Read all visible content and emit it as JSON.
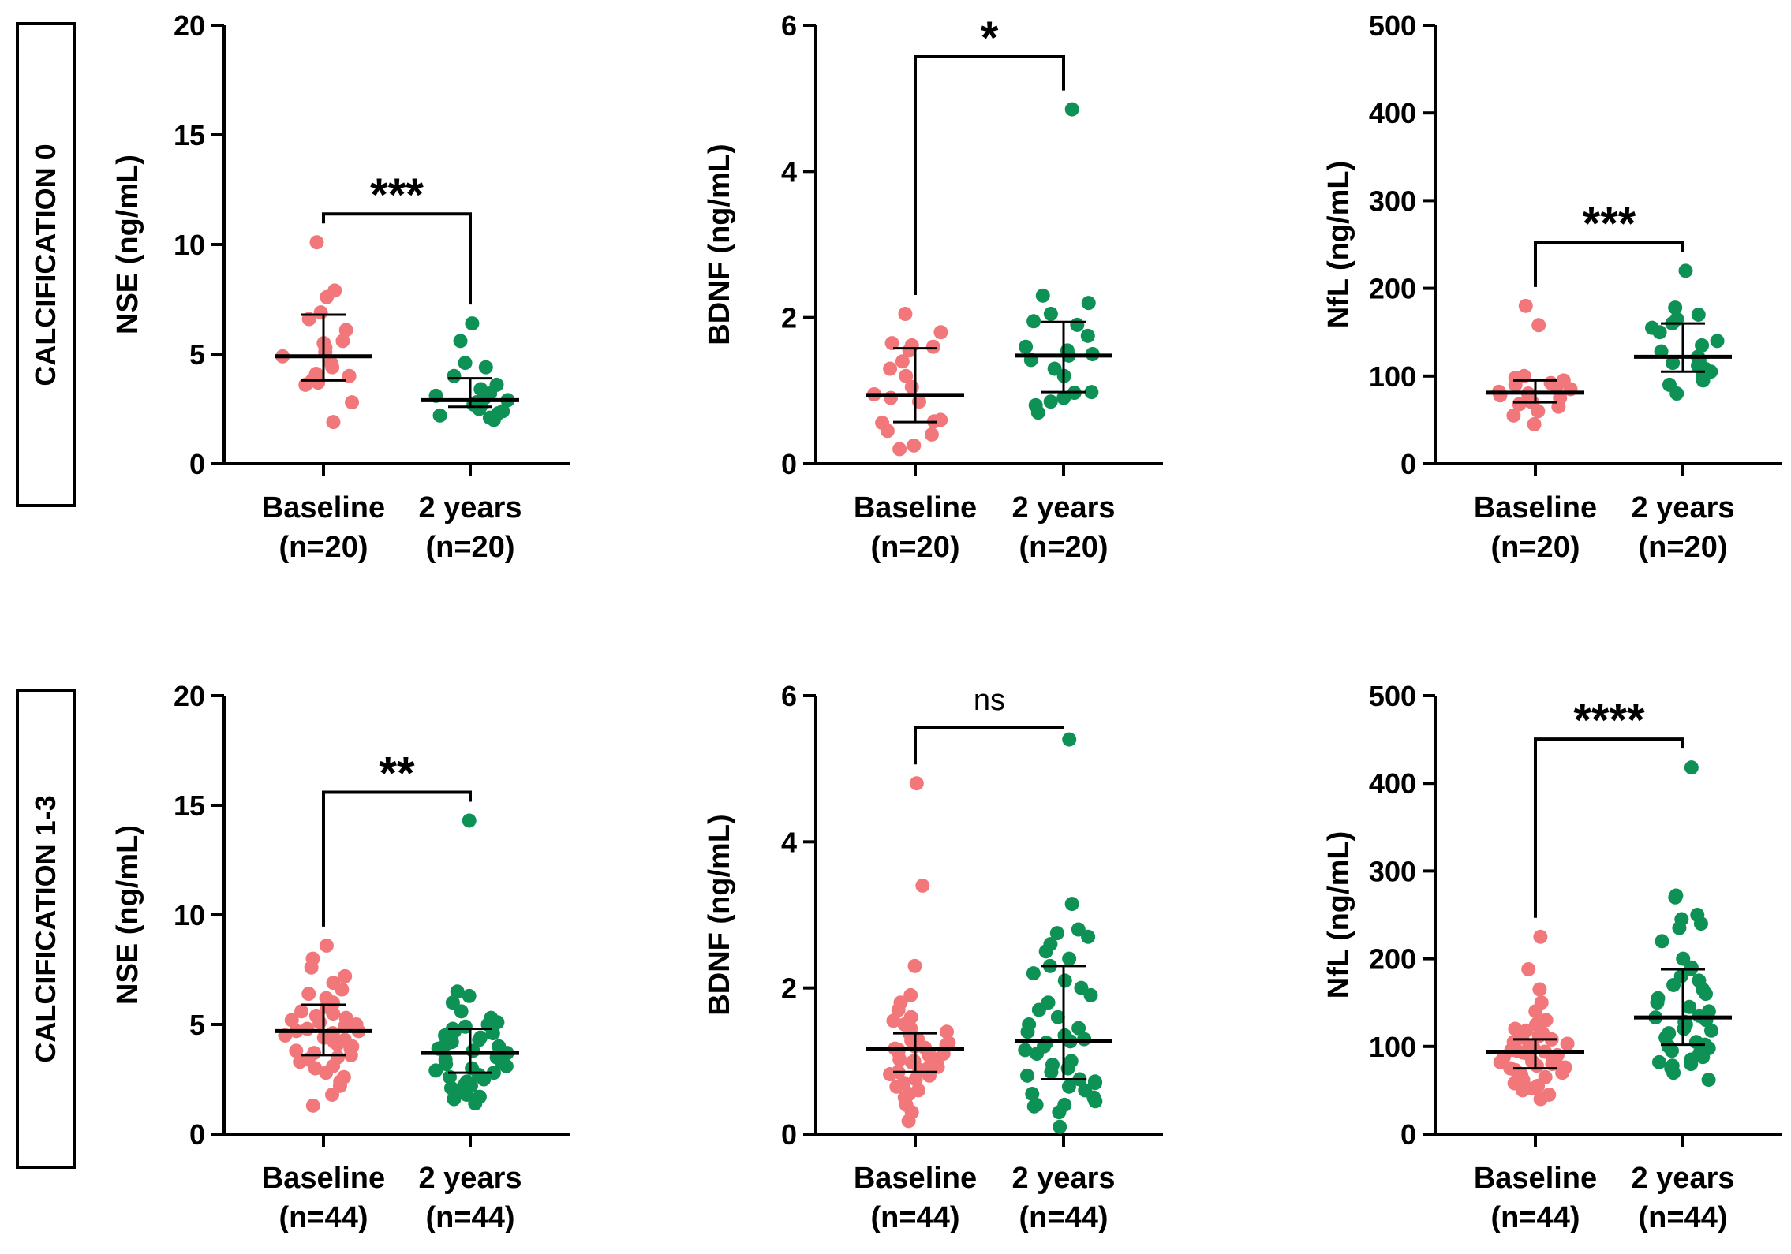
{
  "figure": {
    "rows": [
      {
        "label": "CALCIFICATION 0"
      },
      {
        "label": "CALCIFICATION 1-3"
      }
    ]
  },
  "colors": {
    "baseline": "#F2777A",
    "followup": "#0E9155",
    "axis": "#000000"
  },
  "chart_data": [
    {
      "type": "scatter",
      "row": "CALCIFICATION 0",
      "ylabel": "NSE (ng/mL)",
      "ylim": [
        0,
        20
      ],
      "yticks": [
        0,
        5,
        10,
        15,
        20
      ],
      "categories": [
        "Baseline",
        "2 years"
      ],
      "category_n": [
        "(n=20)",
        "(n=20)"
      ],
      "significance": "***",
      "series": [
        {
          "name": "Baseline",
          "median": 4.9,
          "q1": 3.8,
          "q3": 6.8,
          "values": [
            10.1,
            7.9,
            7.6,
            6.9,
            6.6,
            6.1,
            5.6,
            5.5,
            5.3,
            5.1,
            4.9,
            4.6,
            4.4,
            4.1,
            4.0,
            3.8,
            3.7,
            3.6,
            2.8,
            1.9
          ]
        },
        {
          "name": "2 years",
          "median": 2.9,
          "q1": 2.6,
          "q3": 3.9,
          "values": [
            6.4,
            5.6,
            4.6,
            4.4,
            4.0,
            3.6,
            3.4,
            3.2,
            3.1,
            3.0,
            2.9,
            2.8,
            2.7,
            2.6,
            2.5,
            2.4,
            2.3,
            2.2,
            2.1,
            2.0
          ]
        }
      ]
    },
    {
      "type": "scatter",
      "row": "CALCIFICATION 0",
      "ylabel": "BDNF (ng/mL)",
      "ylim": [
        0,
        6
      ],
      "yticks": [
        0,
        2,
        4,
        6
      ],
      "categories": [
        "Baseline",
        "2 years"
      ],
      "category_n": [
        "(n=20)",
        "(n=20)"
      ],
      "significance": "*",
      "series": [
        {
          "name": "Baseline",
          "median": 0.94,
          "q1": 0.57,
          "q3": 1.58,
          "values": [
            2.05,
            1.8,
            1.65,
            1.62,
            1.6,
            1.55,
            1.4,
            1.3,
            1.2,
            1.05,
            0.95,
            0.9,
            0.85,
            0.6,
            0.58,
            0.56,
            0.45,
            0.4,
            0.25,
            0.2
          ]
        },
        {
          "name": "2 years",
          "median": 1.48,
          "q1": 0.98,
          "q3": 1.94,
          "values": [
            4.85,
            2.3,
            2.2,
            2.05,
            1.95,
            1.9,
            1.75,
            1.6,
            1.55,
            1.5,
            1.48,
            1.42,
            1.3,
            1.2,
            0.98,
            0.97,
            0.9,
            0.85,
            0.8,
            0.7
          ]
        }
      ]
    },
    {
      "type": "scatter",
      "row": "CALCIFICATION 0",
      "ylabel": "NfL (ng/mL)",
      "ylim": [
        0,
        500
      ],
      "yticks": [
        0,
        100,
        200,
        300,
        400,
        500
      ],
      "categories": [
        "Baseline",
        "2 years"
      ],
      "category_n": [
        "(n=20)",
        "(n=20)"
      ],
      "significance": "***",
      "series": [
        {
          "name": "Baseline",
          "median": 81,
          "q1": 70,
          "q3": 95,
          "values": [
            180,
            158,
            100,
            98,
            95,
            92,
            90,
            88,
            85,
            82,
            80,
            78,
            75,
            72,
            70,
            68,
            65,
            60,
            55,
            45
          ]
        },
        {
          "name": "2 years",
          "median": 122,
          "q1": 105,
          "q3": 160,
          "values": [
            220,
            178,
            170,
            165,
            160,
            155,
            150,
            140,
            135,
            128,
            122,
            118,
            115,
            112,
            108,
            105,
            100,
            95,
            90,
            80
          ]
        }
      ]
    },
    {
      "type": "scatter",
      "row": "CALCIFICATION 1-3",
      "ylabel": "NSE (ng/mL)",
      "ylim": [
        0,
        20
      ],
      "yticks": [
        0,
        5,
        10,
        15,
        20
      ],
      "categories": [
        "Baseline",
        "2 years"
      ],
      "category_n": [
        "(n=44)",
        "(n=44)"
      ],
      "significance": "**",
      "series": [
        {
          "name": "Baseline",
          "median": 4.7,
          "q1": 3.6,
          "q3": 5.9,
          "values": [
            8.6,
            8.0,
            7.6,
            7.2,
            6.9,
            6.6,
            6.4,
            6.2,
            6.0,
            5.9,
            5.8,
            5.6,
            5.5,
            5.4,
            5.3,
            5.2,
            5.1,
            5.0,
            4.9,
            4.8,
            4.7,
            4.7,
            4.6,
            4.5,
            4.4,
            4.3,
            4.2,
            4.1,
            4.0,
            3.9,
            3.8,
            3.7,
            3.6,
            3.5,
            3.4,
            3.3,
            3.1,
            3.0,
            2.8,
            2.6,
            2.4,
            2.2,
            1.8,
            1.3
          ]
        },
        {
          "name": "2 years",
          "median": 3.7,
          "q1": 2.8,
          "q3": 4.8,
          "values": [
            14.3,
            6.5,
            6.3,
            6.0,
            5.6,
            5.3,
            5.1,
            5.0,
            4.9,
            4.8,
            4.7,
            4.6,
            4.5,
            4.4,
            4.3,
            4.2,
            4.1,
            4.0,
            3.9,
            3.8,
            3.7,
            3.7,
            3.6,
            3.5,
            3.4,
            3.3,
            3.2,
            3.1,
            3.0,
            2.9,
            2.8,
            2.7,
            2.6,
            2.5,
            2.4,
            2.3,
            2.2,
            2.1,
            2.0,
            1.9,
            1.8,
            1.7,
            1.6,
            1.4
          ]
        }
      ]
    },
    {
      "type": "scatter",
      "row": "CALCIFICATION 1-3",
      "ylabel": "BDNF (ng/mL)",
      "ylim": [
        0,
        6
      ],
      "yticks": [
        0,
        2,
        4,
        6
      ],
      "categories": [
        "Baseline",
        "2 years"
      ],
      "category_n": [
        "(n=44)",
        "(n=44)"
      ],
      "significance": "ns",
      "series": [
        {
          "name": "Baseline",
          "median": 1.17,
          "q1": 0.85,
          "q3": 1.38,
          "values": [
            4.8,
            3.4,
            2.3,
            1.9,
            1.8,
            1.7,
            1.6,
            1.55,
            1.5,
            1.45,
            1.4,
            1.38,
            1.35,
            1.3,
            1.28,
            1.25,
            1.22,
            1.2,
            1.18,
            1.17,
            1.15,
            1.12,
            1.1,
            1.08,
            1.05,
            1.02,
            1.0,
            0.98,
            0.95,
            0.92,
            0.9,
            0.88,
            0.85,
            0.82,
            0.8,
            0.75,
            0.7,
            0.65,
            0.6,
            0.55,
            0.5,
            0.4,
            0.3,
            0.18
          ]
        },
        {
          "name": "2 years",
          "median": 1.27,
          "q1": 0.75,
          "q3": 2.3,
          "values": [
            5.4,
            3.15,
            2.8,
            2.75,
            2.7,
            2.6,
            2.5,
            2.4,
            2.3,
            2.2,
            2.1,
            2.0,
            1.9,
            1.8,
            1.7,
            1.6,
            1.5,
            1.45,
            1.4,
            1.35,
            1.3,
            1.27,
            1.25,
            1.2,
            1.15,
            1.1,
            1.0,
            0.95,
            0.9,
            0.85,
            0.8,
            0.75,
            0.72,
            0.7,
            0.65,
            0.6,
            0.55,
            0.5,
            0.45,
            0.4,
            0.4,
            0.38,
            0.3,
            0.1
          ]
        }
      ]
    },
    {
      "type": "scatter",
      "row": "CALCIFICATION 1-3",
      "ylabel": "NfL (ng/mL)",
      "ylim": [
        0,
        500
      ],
      "yticks": [
        0,
        100,
        200,
        300,
        400,
        500
      ],
      "categories": [
        "Baseline",
        "2 years"
      ],
      "category_n": [
        "(n=44)",
        "(n=44)"
      ],
      "significance": "****",
      "series": [
        {
          "name": "Baseline",
          "median": 94,
          "q1": 75,
          "q3": 108,
          "values": [
            225,
            188,
            165,
            150,
            140,
            130,
            125,
            120,
            118,
            115,
            112,
            110,
            108,
            105,
            103,
            100,
            98,
            96,
            95,
            94,
            93,
            92,
            90,
            88,
            86,
            85,
            83,
            82,
            80,
            78,
            76,
            75,
            73,
            70,
            68,
            65,
            62,
            60,
            58,
            55,
            52,
            50,
            45,
            40
          ]
        },
        {
          "name": "2 years",
          "median": 133,
          "q1": 102,
          "q3": 188,
          "values": [
            418,
            272,
            270,
            250,
            245,
            240,
            235,
            220,
            200,
            190,
            188,
            180,
            175,
            170,
            165,
            160,
            155,
            150,
            145,
            140,
            135,
            133,
            130,
            128,
            125,
            120,
            118,
            115,
            110,
            105,
            102,
            100,
            98,
            95,
            92,
            90,
            88,
            85,
            82,
            80,
            78,
            75,
            70,
            62
          ]
        }
      ]
    }
  ]
}
